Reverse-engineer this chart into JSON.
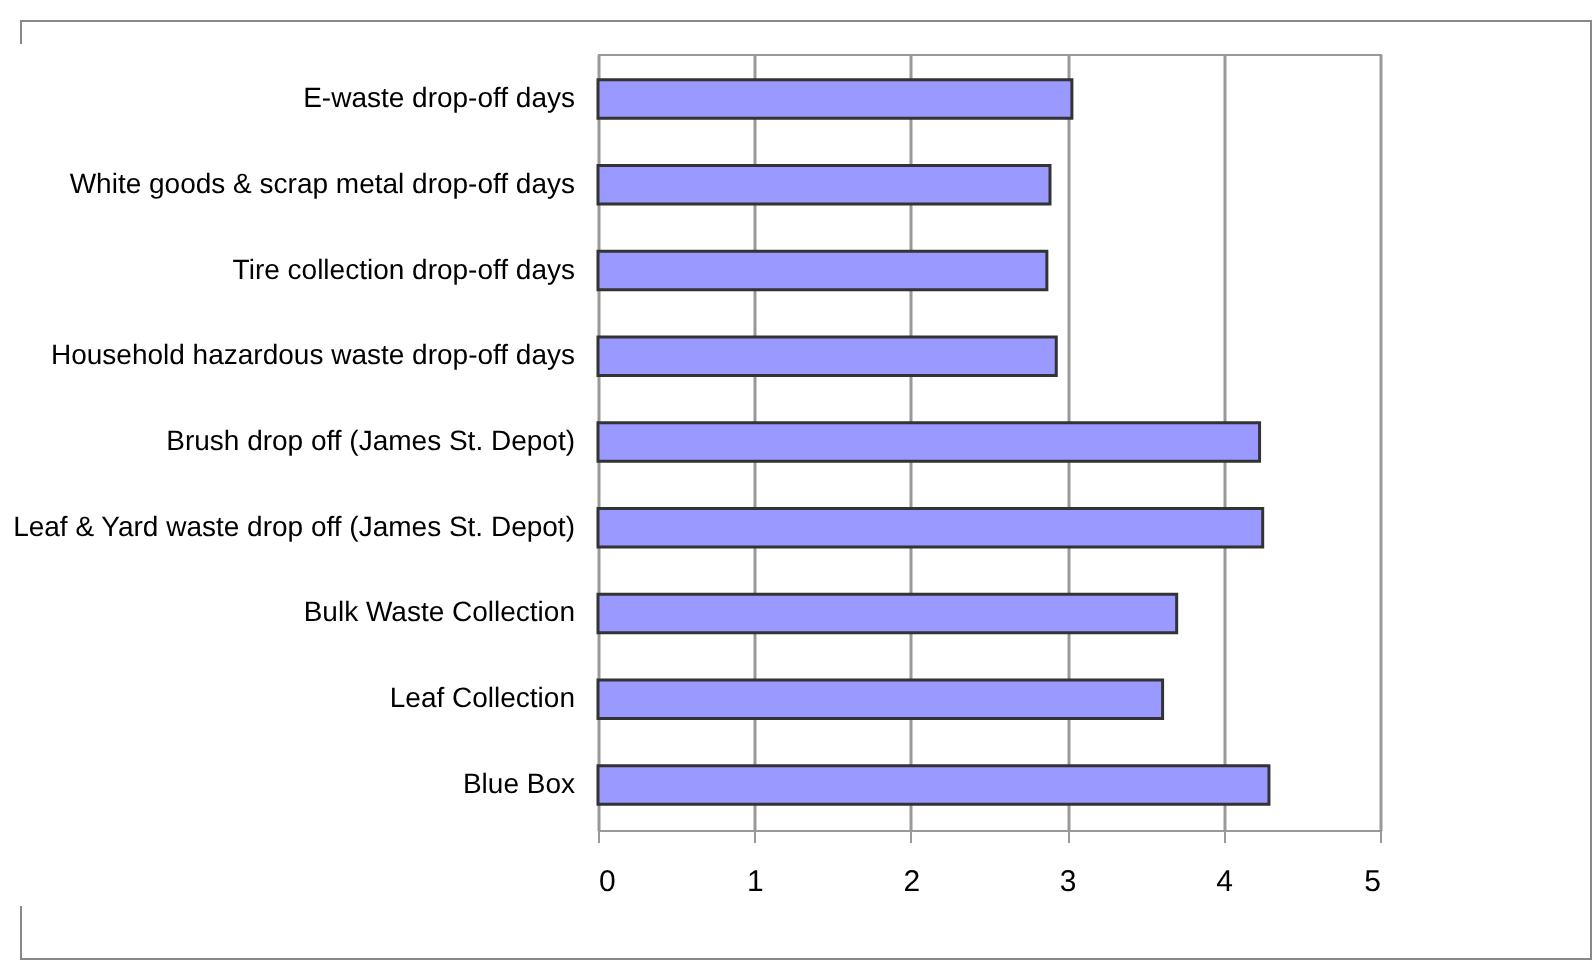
{
  "chart_data": {
    "type": "bar",
    "orientation": "horizontal",
    "categories": [
      "E-waste drop-off days",
      "White goods & scrap metal drop-off days",
      "Tire collection drop-off days",
      "Household hazardous waste drop-off days",
      "Brush drop off (James St. Depot)",
      "Leaf & Yard waste drop off (James St. Depot)",
      "Bulk Waste Collection",
      "Leaf Collection",
      "Blue Box"
    ],
    "values": [
      3.03,
      2.89,
      2.87,
      2.93,
      4.23,
      4.25,
      3.7,
      3.61,
      4.29
    ],
    "color": "#9999ff",
    "xlim": [
      0,
      5
    ],
    "xticks": [
      0,
      1,
      2,
      3,
      4,
      5
    ],
    "grid": "x"
  }
}
